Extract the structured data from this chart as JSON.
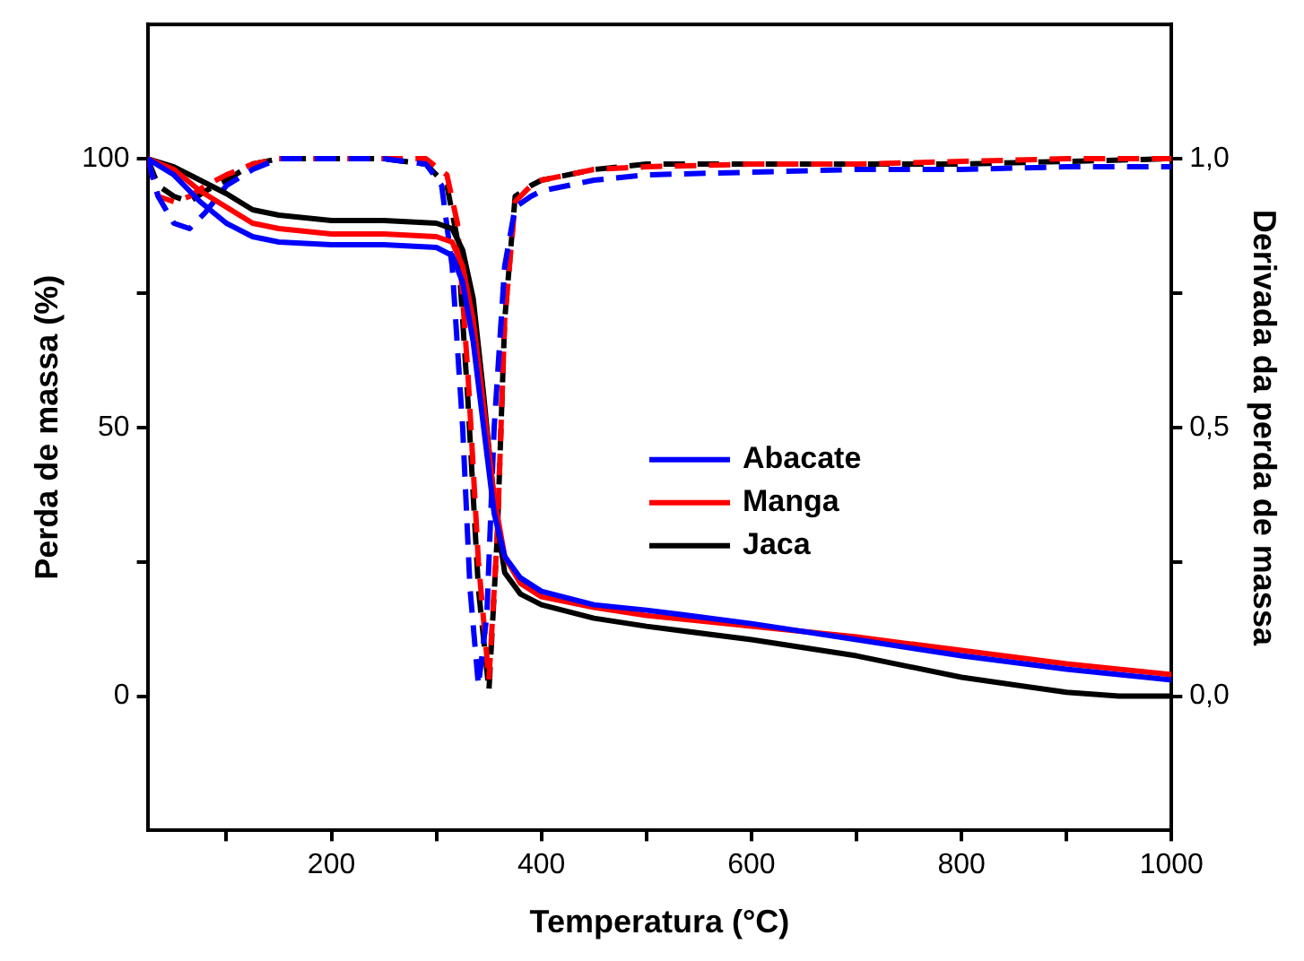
{
  "chart_data": {
    "type": "line",
    "xlabel": "Temperatura (°C)",
    "ylabel": "Perda de massa (%)",
    "y2label": "Derivada da perda de massa",
    "xlim": [
      25,
      1000
    ],
    "xticks": [
      {
        "value": 100,
        "label": null
      },
      200,
      {
        "value": 300,
        "label": null
      },
      400,
      {
        "value": 500,
        "label": null
      },
      600,
      {
        "value": 700,
        "label": null
      },
      800,
      {
        "value": 900,
        "label": null
      },
      1000
    ],
    "ylim": [
      -25,
      125
    ],
    "yticks": [
      0,
      {
        "value": 25,
        "label": null
      },
      50,
      {
        "value": 75,
        "label": null
      },
      100
    ],
    "y2lim": [
      -0.25,
      1.25
    ],
    "y2ticks": [
      {
        "value": 0,
        "label": "0,0"
      },
      {
        "value": 0.25,
        "label": null
      },
      {
        "value": 0.5,
        "label": "0,5"
      },
      {
        "value": 0.75,
        "label": null
      },
      {
        "value": 1,
        "label": "1,0"
      }
    ],
    "grid": false,
    "legend": "right",
    "marker": "none",
    "series": [
      {
        "name": "Abacate",
        "color": "#0000ff",
        "line_style": "solid",
        "x": [
          25,
          50,
          75,
          100,
          125,
          150,
          200,
          250,
          300,
          315,
          325,
          335,
          345,
          355,
          365,
          380,
          400,
          450,
          500,
          600,
          700,
          800,
          900,
          1000
        ],
        "values": [
          100,
          97,
          92,
          88,
          85.5,
          84.5,
          84,
          84,
          83.5,
          82,
          77,
          66,
          50,
          34,
          26,
          22,
          19.5,
          17,
          16,
          13.5,
          10.5,
          7.5,
          5,
          3
        ]
      },
      {
        "name": "Manga",
        "color": "#ff0000",
        "line_style": "solid",
        "x": [
          25,
          50,
          75,
          100,
          125,
          150,
          200,
          250,
          300,
          315,
          325,
          335,
          345,
          355,
          365,
          380,
          400,
          450,
          500,
          600,
          700,
          800,
          900,
          1000
        ],
        "values": [
          100,
          98,
          94,
          91,
          88,
          87,
          86,
          86,
          85.5,
          84.5,
          80,
          70,
          54,
          37,
          26,
          21,
          18.5,
          16.5,
          15,
          13,
          11,
          8.5,
          6,
          4
        ]
      },
      {
        "name": "Jaca",
        "color": "#000000",
        "line_style": "solid",
        "x": [
          25,
          50,
          75,
          100,
          125,
          150,
          200,
          250,
          300,
          315,
          325,
          335,
          345,
          355,
          365,
          380,
          400,
          450,
          500,
          600,
          700,
          800,
          900,
          950,
          1000
        ],
        "values": [
          100,
          98.5,
          96,
          93.5,
          90.5,
          89.5,
          88.5,
          88.5,
          88,
          87,
          83,
          74,
          56,
          36,
          23,
          19,
          17,
          14.5,
          13,
          10.5,
          7.5,
          3.5,
          0.7,
          0,
          0
        ]
      },
      {
        "color": "#0000ff",
        "axis": "y2",
        "line_style": "dashed",
        "x": [
          25,
          35,
          50,
          65,
          80,
          100,
          125,
          150,
          200,
          250,
          290,
          305,
          315,
          325,
          332,
          340,
          348,
          355,
          365,
          375,
          390,
          400,
          450,
          500,
          600,
          700,
          800,
          900,
          1000
        ],
        "values": [
          1,
          0.93,
          0.88,
          0.87,
          0.9,
          0.95,
          0.98,
          1,
          1,
          1,
          0.99,
          0.95,
          0.8,
          0.5,
          0.2,
          0.02,
          0.15,
          0.5,
          0.8,
          0.91,
          0.93,
          0.94,
          0.96,
          0.97,
          0.975,
          0.98,
          0.98,
          0.985,
          0.985
        ]
      },
      {
        "color": "#ff0000",
        "axis": "y2",
        "line_style": "dashed",
        "x": [
          25,
          35,
          50,
          65,
          80,
          100,
          125,
          150,
          200,
          250,
          290,
          310,
          320,
          330,
          340,
          350,
          358,
          365,
          375,
          390,
          400,
          450,
          500,
          600,
          700,
          800,
          900,
          1000
        ],
        "values": [
          1,
          0.93,
          0.92,
          0.93,
          0.95,
          0.97,
          0.99,
          1,
          1,
          1,
          1,
          0.97,
          0.88,
          0.6,
          0.25,
          0.03,
          0.3,
          0.7,
          0.92,
          0.95,
          0.96,
          0.98,
          0.985,
          0.99,
          0.99,
          0.995,
          1,
          1
        ]
      },
      {
        "color": "#000000",
        "axis": "y2",
        "line_style": "dashed",
        "x": [
          25,
          35,
          50,
          65,
          80,
          100,
          125,
          150,
          200,
          250,
          290,
          310,
          320,
          330,
          340,
          350,
          358,
          365,
          375,
          390,
          400,
          450,
          500,
          600,
          700,
          800,
          900,
          1000
        ],
        "values": [
          1,
          0.95,
          0.93,
          0.92,
          0.94,
          0.96,
          0.99,
          1,
          1,
          1,
          0.99,
          0.95,
          0.85,
          0.55,
          0.2,
          0.01,
          0.3,
          0.7,
          0.93,
          0.95,
          0.96,
          0.98,
          0.99,
          0.99,
          0.99,
          0.99,
          0.995,
          1
        ]
      }
    ]
  }
}
